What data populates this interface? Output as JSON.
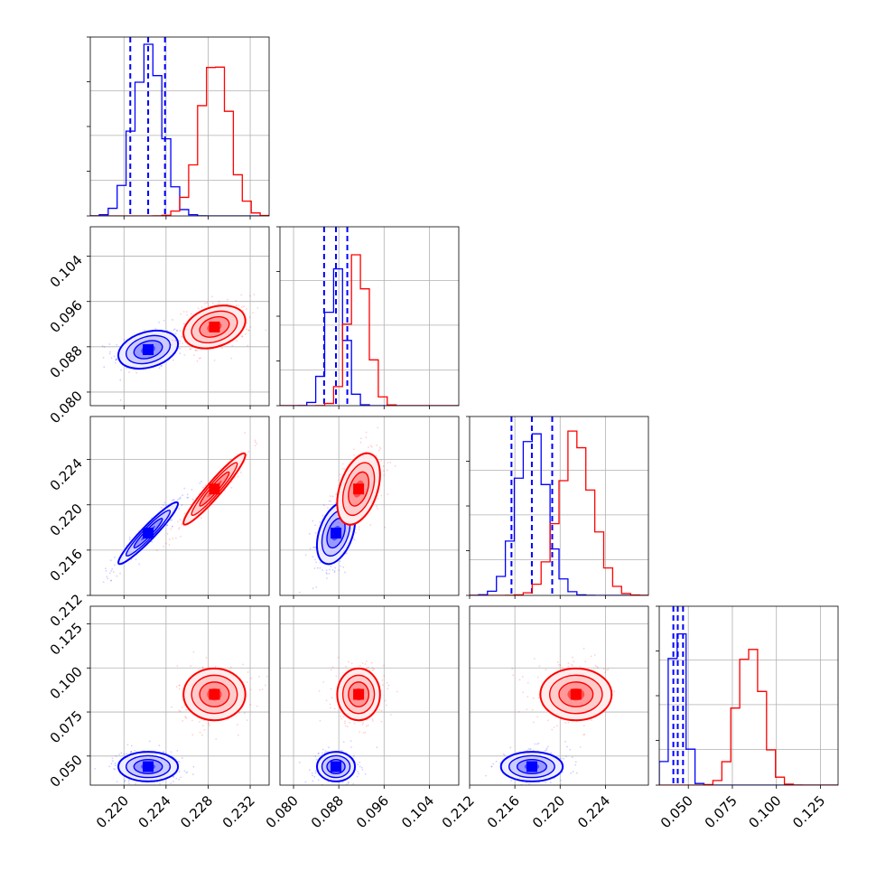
{
  "chart_data": {
    "type": "corner",
    "params": [
      "",
      "",
      "",
      ""
    ],
    "colors": {
      "series_a": "#0000ff",
      "series_b": "#ff0000"
    },
    "grid": true,
    "ranges": [
      [
        0.2168,
        0.2338
      ],
      [
        0.0776,
        0.1092
      ],
      [
        0.212,
        0.2278
      ],
      [
        0.0335,
        0.135
      ]
    ],
    "ticks": [
      [
        "0.220",
        "0.224",
        "0.228",
        "0.232"
      ],
      [
        "0.080",
        "0.088",
        "0.096",
        "0.104"
      ],
      [
        "0.212",
        "0.216",
        "0.220",
        "0.224"
      ],
      [
        "0.050",
        "0.075",
        "0.100",
        "0.125"
      ]
    ],
    "tick_values": [
      [
        0.22,
        0.224,
        0.228,
        0.232
      ],
      [
        0.08,
        0.088,
        0.096,
        0.104
      ],
      [
        0.212,
        0.216,
        0.22,
        0.224
      ],
      [
        0.05,
        0.075,
        0.1,
        0.125
      ]
    ],
    "series": [
      {
        "name": "",
        "color": "#0000ff",
        "medians": [
          0.2223,
          0.0875,
          0.2175,
          0.044
        ],
        "quantiles": [
          [
            0.2206,
            0.2223,
            0.2239
          ],
          [
            0.0854,
            0.0875,
            0.0895
          ],
          [
            0.2157,
            0.2175,
            0.2193
          ],
          [
            0.0415,
            0.044,
            0.047
          ]
        ],
        "widths": [
          0.00135,
          0.0016,
          0.0013,
          0.004
        ],
        "hist_peak": [
          0.98,
          0.75,
          0.93,
          1.0
        ],
        "correlation_with_0": [
          1.0,
          0.4,
          0.95,
          0.0
        ]
      },
      {
        "name": "",
        "color": "#ff0000",
        "medians": [
          0.2286,
          0.0915,
          0.2214,
          0.085
        ],
        "quantiles": [
          null,
          null,
          null,
          null
        ],
        "widths": [
          0.0014,
          0.0018,
          0.0015,
          0.007
        ],
        "hist_peak": [
          0.9,
          0.85,
          0.9,
          0.85
        ],
        "correlation_with_0": [
          1.0,
          0.3,
          0.95,
          0.0
        ]
      }
    ]
  }
}
